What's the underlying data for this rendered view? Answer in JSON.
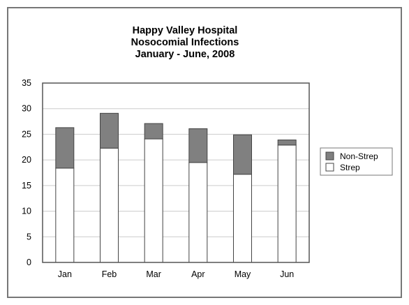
{
  "colors": {
    "frame": "#777777",
    "plot_border": "#555555",
    "grid": "#cccccc",
    "non_strep": "#808080",
    "strep": "#ffffff",
    "bar_stroke": "#444444"
  },
  "chart_data": {
    "type": "bar",
    "stacked": true,
    "title_lines": [
      "Happy Valley Hospital",
      "Nosocomial Infections",
      "January - June, 2008"
    ],
    "xlabel": "",
    "ylabel": "",
    "categories": [
      "Jan",
      "Feb",
      "Mar",
      "Apr",
      "May",
      "Jun"
    ],
    "series": [
      {
        "name": "Strep",
        "values": [
          18.4,
          22.3,
          24.1,
          19.5,
          17.2,
          22.9
        ],
        "color": "#ffffff"
      },
      {
        "name": "Non-Strep",
        "values": [
          7.9,
          6.8,
          3.0,
          6.6,
          7.7,
          1.0
        ],
        "color": "#808080"
      }
    ],
    "ylim": [
      0,
      35
    ],
    "yticks": [
      0,
      5,
      10,
      15,
      20,
      25,
      30,
      35
    ],
    "ytick_labels": [
      "0",
      "5",
      "10",
      "15",
      "20",
      "25",
      "30",
      "35"
    ],
    "grid": "horizontal",
    "legend": {
      "position": "right",
      "entries": [
        "Non-Strep",
        "Strep"
      ]
    }
  }
}
